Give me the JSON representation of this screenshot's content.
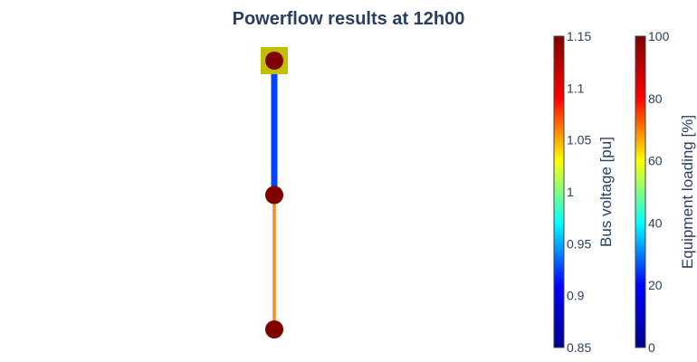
{
  "chart_data": {
    "type": "network",
    "title": "Powerflow results at 12h00",
    "external_grid_color": "#bfbf00",
    "buses": [
      {
        "id": "bus-top",
        "x": 0,
        "y": 2,
        "voltage_pu": 1.15,
        "color": "#800000"
      },
      {
        "id": "bus-mid",
        "x": 0,
        "y": 1,
        "voltage_pu": 1.15,
        "color": "#800000"
      },
      {
        "id": "bus-bottom",
        "x": 0,
        "y": 0,
        "voltage_pu": 1.15,
        "color": "#800000"
      }
    ],
    "lines": [
      {
        "from": "bus-top",
        "to": "bus-mid",
        "loading_percent": 18,
        "color": "#0044ff"
      },
      {
        "from": "bus-mid",
        "to": "bus-bottom",
        "loading_percent": 68,
        "color": "#ff8c1a"
      }
    ],
    "colorbars": [
      {
        "title": "Bus voltage [pu]",
        "range": [
          0.85,
          1.15
        ],
        "ticks": [
          "0.85",
          "0.9",
          "0.95",
          "1",
          "1.05",
          "1.1",
          "1.15"
        ],
        "tick_values": [
          0.85,
          0.9,
          0.95,
          1.0,
          1.05,
          1.1,
          1.15
        ],
        "colorscale": [
          "#00008f",
          "#0000ff",
          "#00ffff",
          "#ffff00",
          "#ff0000",
          "#800000"
        ]
      },
      {
        "title": "Equipment loading [%]",
        "range": [
          0,
          100
        ],
        "ticks": [
          "0",
          "20",
          "40",
          "60",
          "80",
          "100"
        ],
        "tick_values": [
          0,
          20,
          40,
          60,
          80,
          100
        ],
        "colorscale": [
          "#00008f",
          "#0000ff",
          "#00ffff",
          "#ffff00",
          "#ff0000",
          "#800000"
        ]
      }
    ]
  }
}
